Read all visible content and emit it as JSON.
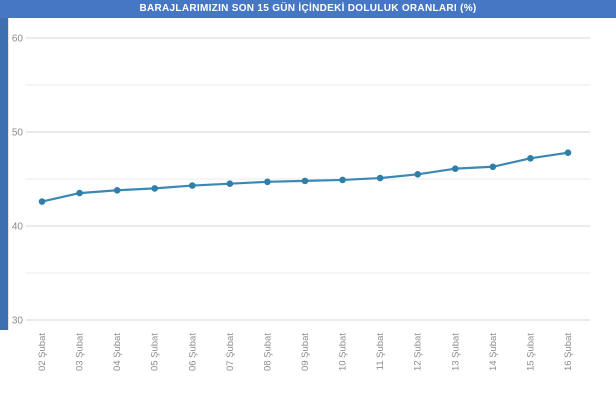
{
  "chart_data": {
    "type": "line",
    "title": "BARAJLARIMIZIN SON 15 GÜN İÇİNDEKİ DOLULUK ORANLARI (%)",
    "categories": [
      "02 Şubat",
      "03 Şubat",
      "04 Şubat",
      "05 Şubat",
      "06 Şubat",
      "07 Şubat",
      "08 Şubat",
      "09 Şubat",
      "10 Şubat",
      "11 Şubat",
      "12 Şubat",
      "13 Şubat",
      "14 Şubat",
      "15 Şubat",
      "16 Şubat"
    ],
    "values": [
      42.6,
      43.5,
      43.8,
      44.0,
      44.3,
      44.5,
      44.7,
      44.8,
      44.9,
      45.1,
      45.5,
      46.1,
      46.3,
      47.2,
      47.8
    ],
    "xlabel": "",
    "ylabel": "",
    "ylim": [
      30,
      62
    ],
    "yticks_major": [
      30,
      40,
      50,
      60
    ],
    "yticks_minor": [
      35,
      45,
      55
    ],
    "grid": true,
    "legend_position": "none",
    "marker": "circle"
  },
  "colors": {
    "title_bar": "#4577c4",
    "title_text": "#ffffff",
    "accent_bar": "#3e70b0",
    "series_line": "#3a89b4",
    "series_marker": "#2f7fa8",
    "grid_major": "#d4d4d4",
    "grid_minor": "#ebebeb",
    "tick_label": "#8c8c8c"
  }
}
